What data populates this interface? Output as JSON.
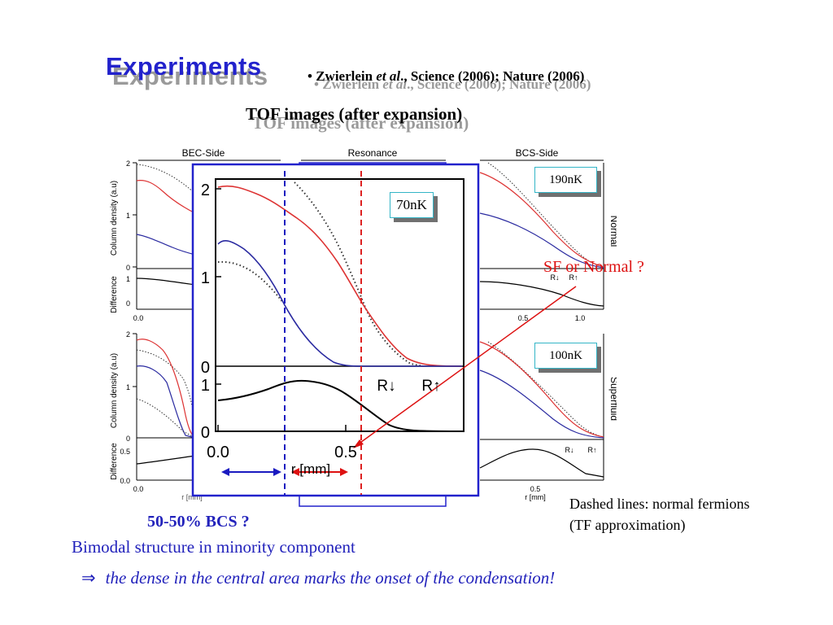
{
  "slide": {
    "title": "Experiments",
    "reference_prefix": "• Zwierlein ",
    "reference_etal": "et al",
    "reference_suffix": "., Science (2006); Nature (2006)",
    "subtitle": "TOF images (after expansion)"
  },
  "figure": {
    "column_titles": [
      "BEC-Side",
      "Resonance",
      "BCS-Side"
    ],
    "row_labels": [
      "Normal",
      "Superfluid"
    ],
    "y_label_top": "Column density (a.u)",
    "y_label_bottom": "Difference",
    "x_label": "r [mm]",
    "x_ticks_small": [
      "0.0",
      "0.5",
      "1.0"
    ],
    "inset": {
      "x_label": "r [mm]",
      "x_ticks": [
        "0.0",
        "0.5"
      ],
      "y_ticks_top": [
        "2",
        "1",
        "0"
      ],
      "y_ticks_bottom": [
        "1",
        "0"
      ],
      "r_down": "R↓",
      "r_up": "R↑"
    }
  },
  "tags": {
    "t70": "70nK",
    "t190": "190nK",
    "t100": "100nK"
  },
  "annotations": {
    "sf_or_normal": "SF or Normal ?",
    "bcs": "50-50% BCS ?",
    "dashed_line1": "Dashed lines: normal fermions",
    "dashed_line2": "(TF approximation)",
    "bimodal": "Bimodal structure in minority component",
    "arrow_symbol": "⇒",
    "onset": "the dense in the central area marks the onset of the condensation!"
  },
  "colors": {
    "title": "#2222cc",
    "majority_curve": "#dd3333",
    "minority_curve": "#2a2aa0",
    "annotation_red": "#dd1111",
    "annotation_blue": "#2222bb",
    "tag_border": "#33b5c7"
  }
}
